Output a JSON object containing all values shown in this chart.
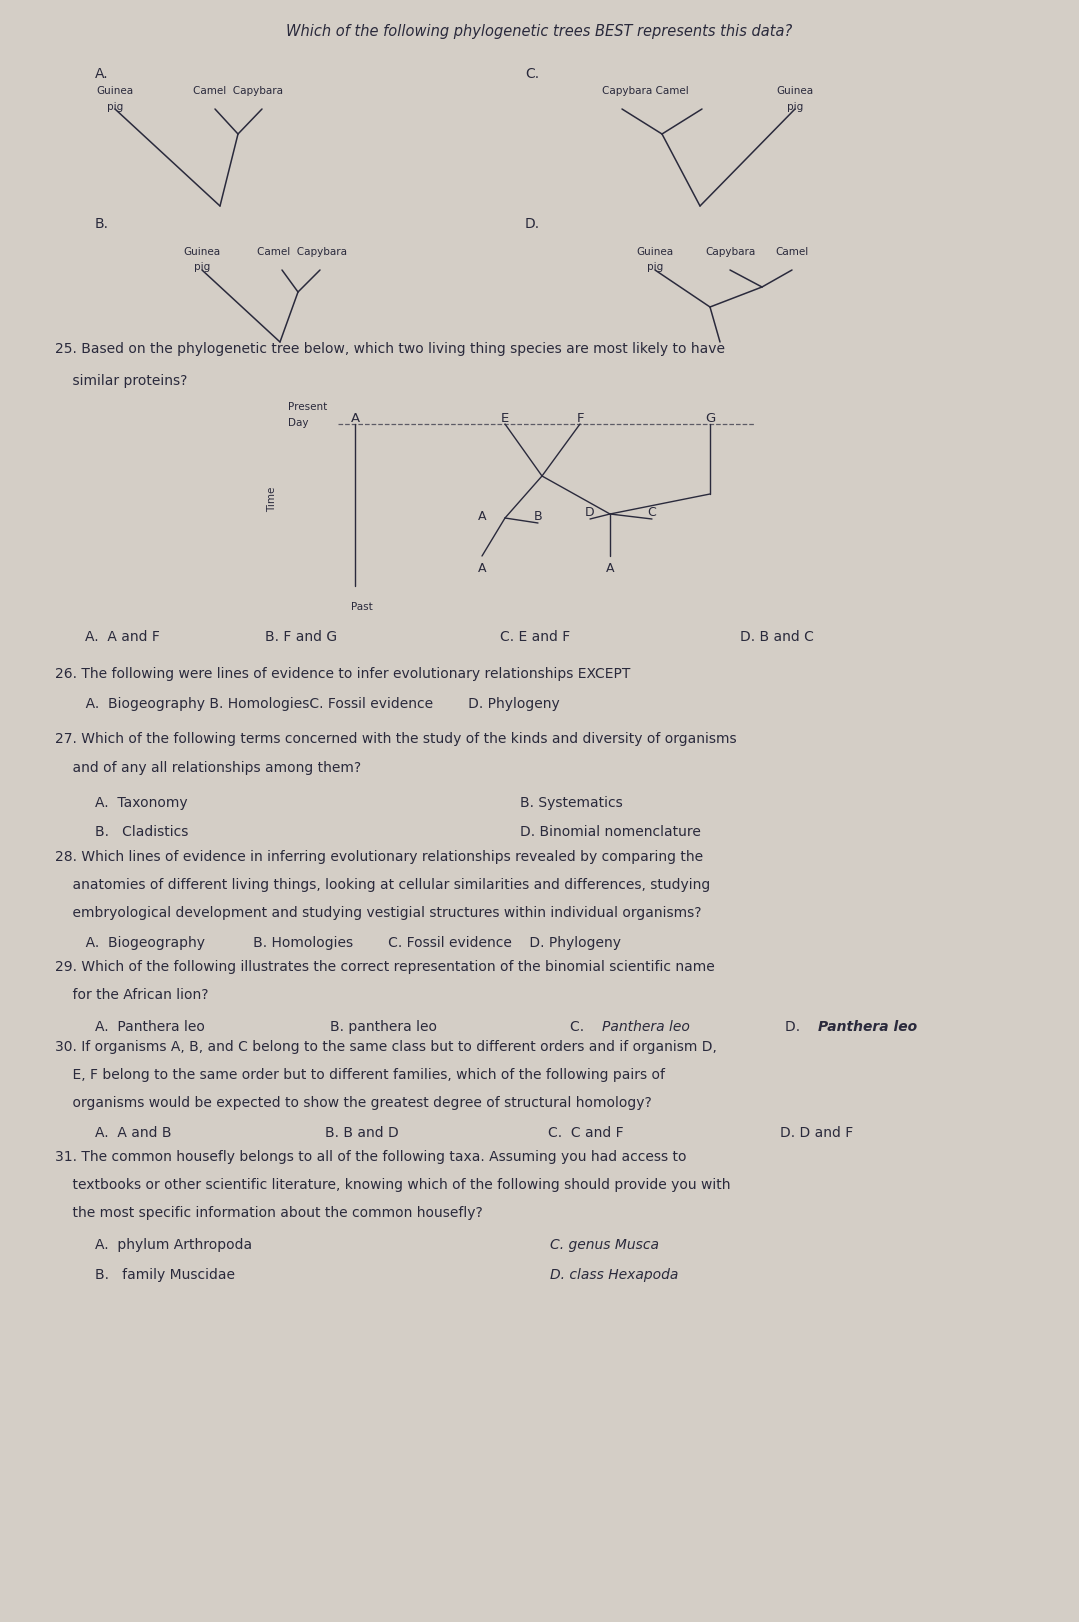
{
  "bg_color": "#d4cec6",
  "text_color": "#2a2a3c",
  "line_color": "#2a2a3c",
  "title_line1": "Which of the following phylogenetic trees BEST represents this data?",
  "tree_A_labels": [
    "Guinea",
    "pig",
    "Camel  Capybara"
  ],
  "tree_C_labels": [
    "Capybara Camel",
    "Guinea",
    "pig"
  ],
  "tree_B_labels": [
    "Guinea",
    "pig",
    "Camel  Capybara"
  ],
  "tree_D_labels": [
    "Guinea",
    "pig",
    "Capybara",
    "Camel"
  ],
  "q25_line1": "25. Based on the phylogenetic tree below, which two living thing species are most likely to have",
  "q25_line2": "    similar proteins?",
  "q25_ans": [
    "A.  A and F",
    "B. F and G",
    "C. E and F",
    "D. B and C"
  ],
  "q26_line1": "26. The following were lines of evidence to infer evolutionary relationships EXCEPT",
  "q26_line2": "       A.  Biogeography B. HomologiesC. Fossil evidence        D. Phylogeny",
  "q27_line1": "27. Which of the following terms concerned with the study of the kinds and diversity of organisms",
  "q27_line2": "    and of any all relationships among them?",
  "q27_al": [
    "A.  Taxonomy",
    "B.   Cladistics"
  ],
  "q27_ar": [
    "B. Systematics",
    "D. Binomial nomenclature"
  ],
  "q28_line1": "28. Which lines of evidence in inferring evolutionary relationships revealed by comparing the",
  "q28_line2": "    anatomies of different living things, looking at cellular similarities and differences, studying",
  "q28_line3": "    embryological development and studying vestigial structures within individual organisms?",
  "q28_line4": "       A.  Biogeography           B. Homologies        C. Fossil evidence    D. Phylogeny",
  "q29_line1": "29. Which of the following illustrates the correct representation of the binomial scientific name",
  "q29_line2": "    for the African lion?",
  "q29_a": "A.  Panthera leo",
  "q29_b": "B. panthera leo",
  "q29_c": "C. Panthera leo",
  "q29_d": "D. Panthera leo",
  "q30_line1": "30. If organisms A, B, and C belong to the same class but to different orders and if organism D,",
  "q30_line2": "    E, F belong to the same order but to different families, which of the following pairs of",
  "q30_line3": "    organisms would be expected to show the greatest degree of structural homology?",
  "q30_line4": "    A.  A and B              B. B and D              C.  C and F              D. D and F",
  "q31_line1": "31. The common housefly belongs to all of the following taxa. Assuming you had access to",
  "q31_line2": "    textbooks or other scientific literature, knowing which of the following should provide you with",
  "q31_line3": "    the most specific information about the common housefly?",
  "q31_al": [
    "A.  phylum Arthropoda",
    "B.   family Muscidae"
  ],
  "q31_ar": [
    "C. genus Musca",
    "D. class Hexapoda"
  ],
  "fs_body": 10.0,
  "fs_small": 8.5,
  "fs_tree_label": 7.5,
  "lmargin": 0.55,
  "indent": 0.95
}
